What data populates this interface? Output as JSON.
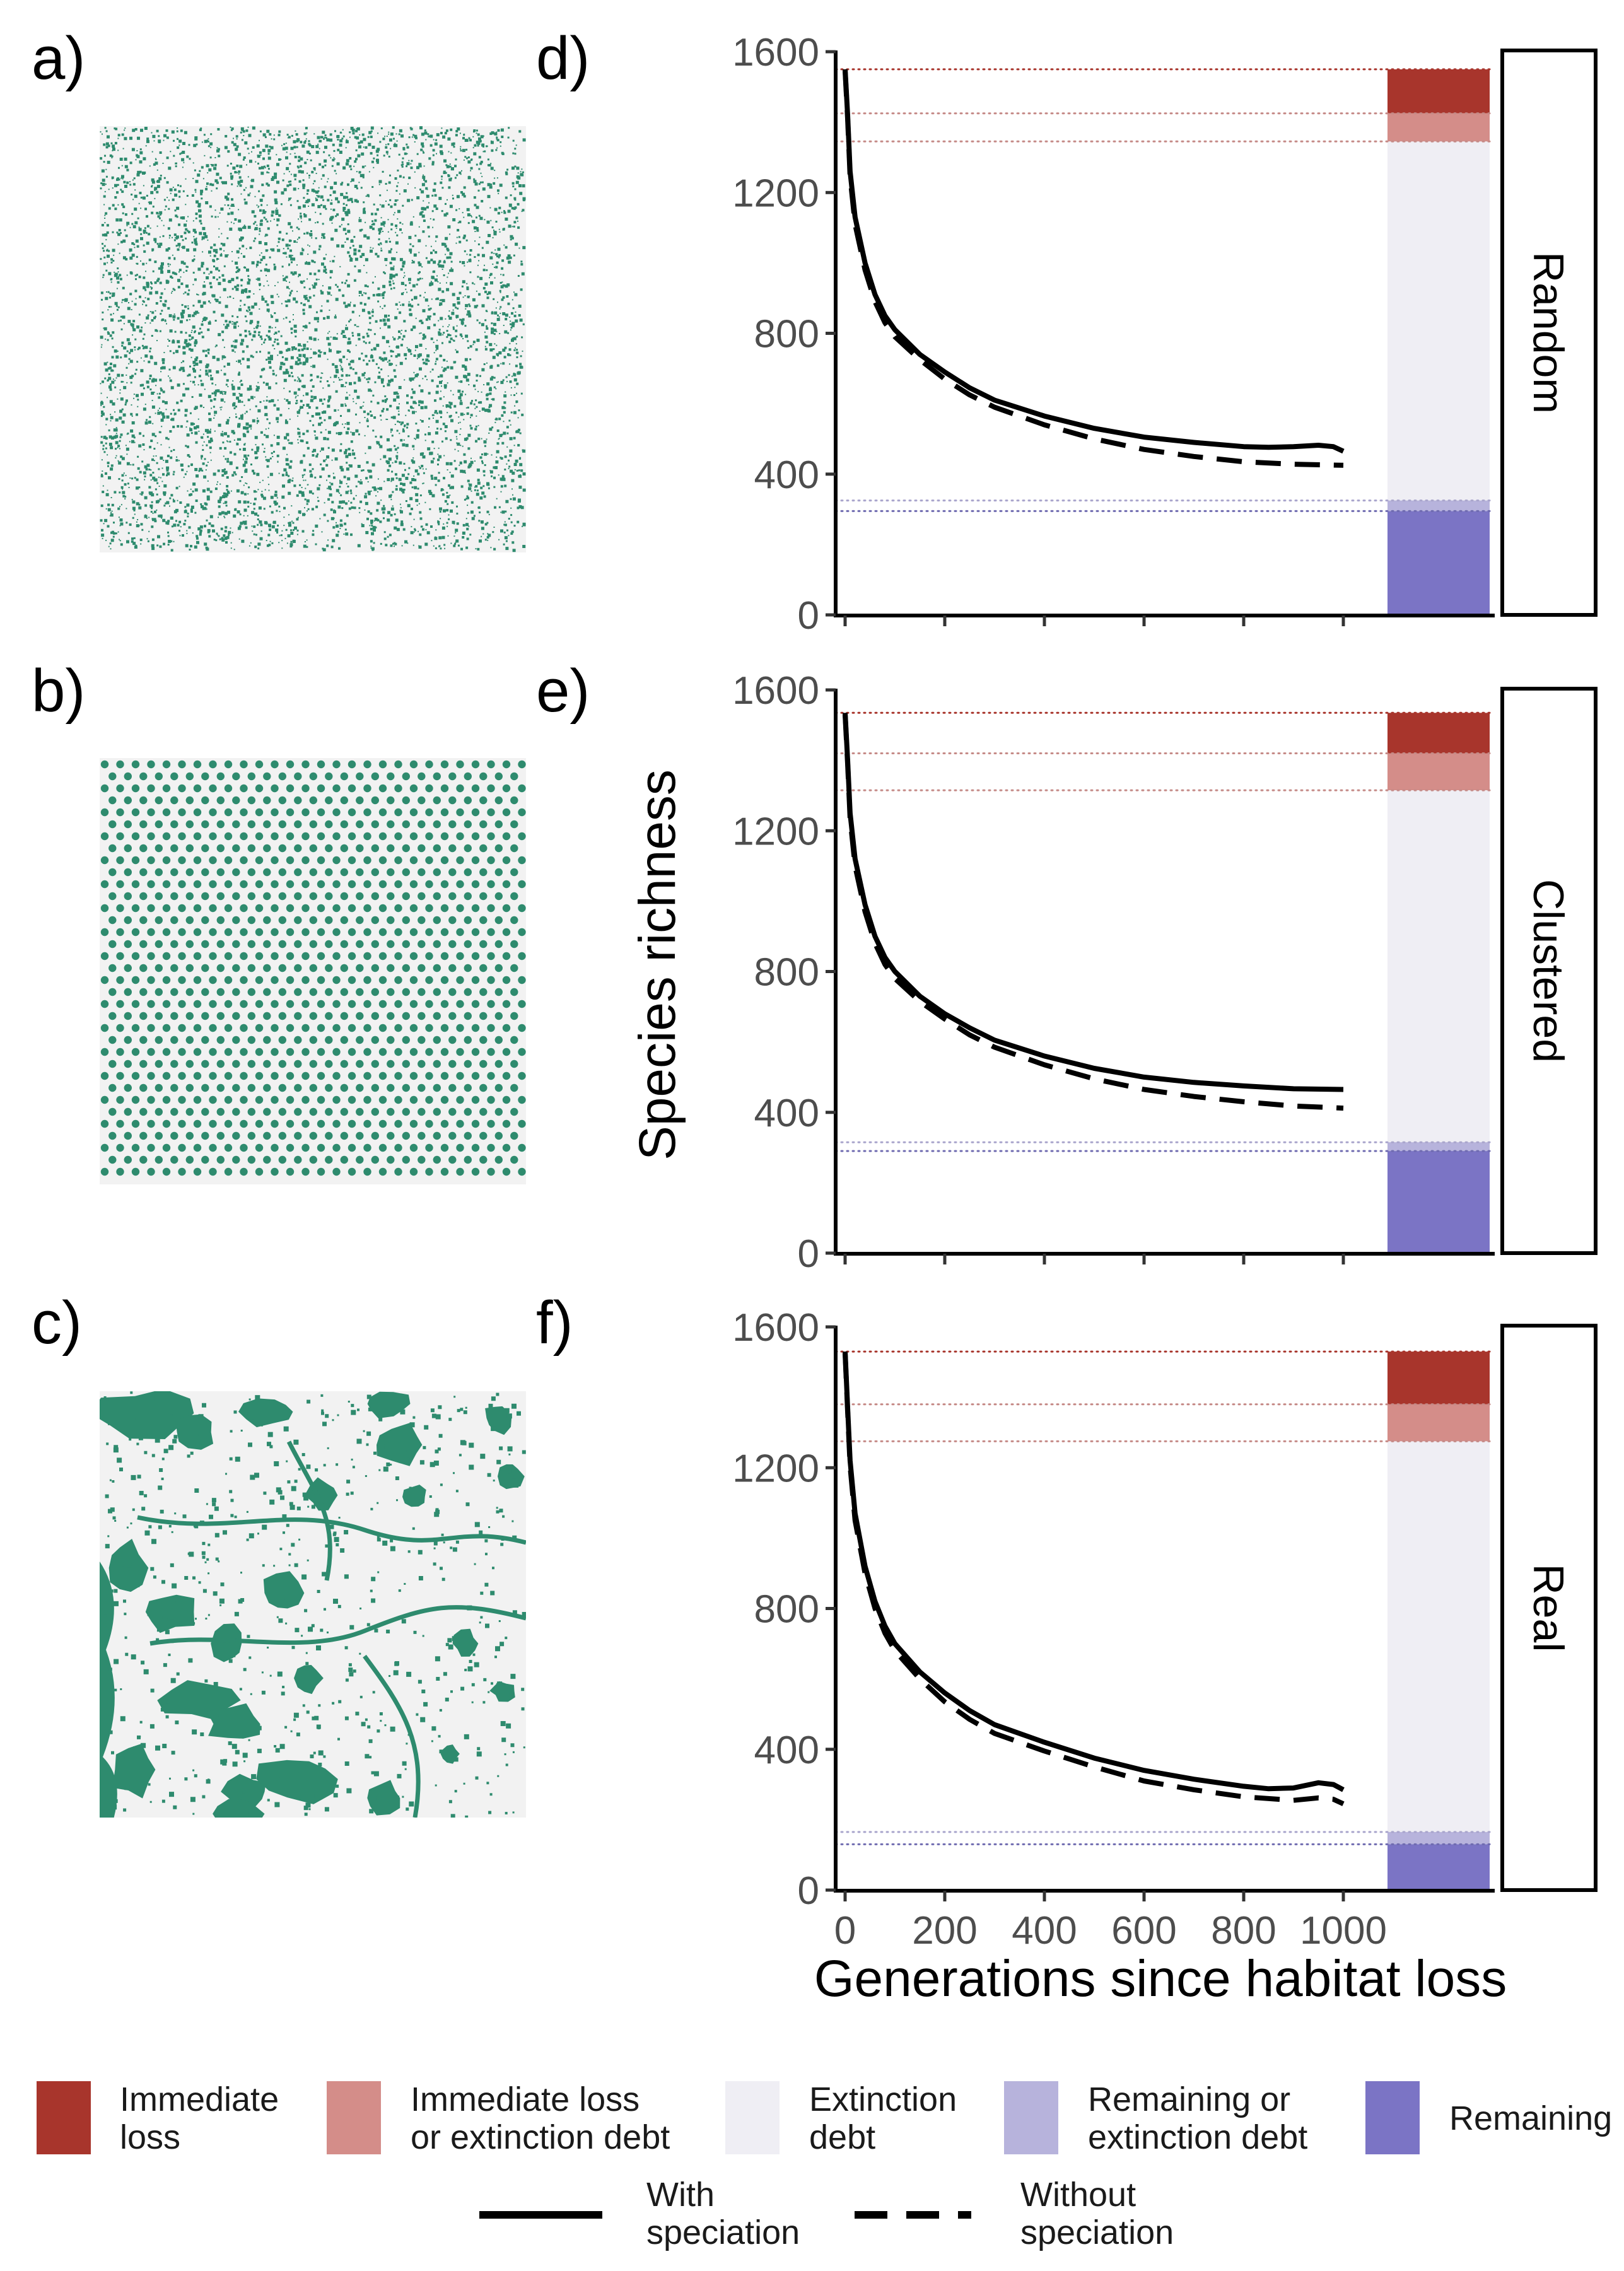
{
  "figure": {
    "panel_labels": [
      "a)",
      "b)",
      "c)",
      "d)",
      "e)",
      "f)"
    ],
    "y_axis_title": "Species richness",
    "x_axis_title": "Generations since habitat loss"
  },
  "maps": [
    {
      "label": "a)",
      "pattern": "random",
      "habitat_color": "#2e8b6e",
      "background_color": "#f2f2f2"
    },
    {
      "label": "b)",
      "pattern": "clustered",
      "habitat_color": "#2e8b6e",
      "background_color": "#f2f2f2"
    },
    {
      "label": "c)",
      "pattern": "real",
      "habitat_color": "#2e8b6e",
      "background_color": "#f2f2f2"
    }
  ],
  "chart_data": [
    {
      "type": "line",
      "panel_label": "d)",
      "facet": "Random",
      "xlim": [
        0,
        1000
      ],
      "ylim": [
        0,
        1600
      ],
      "x_ticks": [
        0,
        200,
        400,
        600,
        800,
        1000
      ],
      "y_ticks": [
        0,
        400,
        800,
        1200,
        1600
      ],
      "series": [
        {
          "name": "With speciation",
          "style": "solid",
          "x": [
            0,
            5,
            10,
            20,
            40,
            60,
            80,
            100,
            150,
            200,
            250,
            300,
            400,
            500,
            600,
            700,
            800,
            850,
            900,
            950,
            980,
            1000
          ],
          "y": [
            1550,
            1420,
            1260,
            1130,
            1000,
            910,
            850,
            810,
            740,
            690,
            645,
            610,
            565,
            530,
            505,
            490,
            478,
            476,
            478,
            482,
            478,
            465
          ]
        },
        {
          "name": "Without speciation",
          "style": "dashed",
          "x": [
            0,
            5,
            10,
            20,
            40,
            60,
            80,
            100,
            150,
            200,
            250,
            300,
            400,
            500,
            600,
            700,
            800,
            900,
            1000
          ],
          "y": [
            1545,
            1410,
            1245,
            1110,
            980,
            890,
            830,
            790,
            725,
            670,
            625,
            590,
            540,
            500,
            470,
            450,
            435,
            428,
            425
          ]
        }
      ],
      "reference_lines": [
        1550,
        1425,
        1345,
        325,
        295
      ],
      "bar": [
        {
          "category": "Immediate loss",
          "from": 1425,
          "to": 1550
        },
        {
          "category": "Immediate loss or extinction debt",
          "from": 1345,
          "to": 1425
        },
        {
          "category": "Extinction debt",
          "from": 325,
          "to": 1345
        },
        {
          "category": "Remaining or extinction debt",
          "from": 295,
          "to": 325
        },
        {
          "category": "Remaining",
          "from": 0,
          "to": 295
        }
      ]
    },
    {
      "type": "line",
      "panel_label": "e)",
      "facet": "Clustered",
      "xlim": [
        0,
        1000
      ],
      "ylim": [
        0,
        1600
      ],
      "x_ticks": [
        0,
        200,
        400,
        600,
        800,
        1000
      ],
      "y_ticks": [
        0,
        400,
        800,
        1200,
        1600
      ],
      "series": [
        {
          "name": "With speciation",
          "style": "solid",
          "x": [
            0,
            5,
            10,
            20,
            40,
            60,
            80,
            100,
            150,
            200,
            250,
            300,
            400,
            500,
            600,
            700,
            800,
            900,
            1000
          ],
          "y": [
            1535,
            1400,
            1250,
            1120,
            990,
            900,
            840,
            800,
            730,
            680,
            640,
            605,
            560,
            525,
            500,
            485,
            475,
            467,
            465
          ]
        },
        {
          "name": "Without speciation",
          "style": "dashed",
          "x": [
            0,
            5,
            10,
            20,
            40,
            60,
            80,
            100,
            150,
            200,
            250,
            300,
            400,
            500,
            600,
            700,
            800,
            900,
            1000
          ],
          "y": [
            1530,
            1390,
            1235,
            1100,
            970,
            880,
            820,
            780,
            715,
            665,
            620,
            585,
            535,
            495,
            465,
            445,
            430,
            418,
            412
          ]
        }
      ],
      "reference_lines": [
        1535,
        1420,
        1315,
        315,
        290
      ],
      "bar": [
        {
          "category": "Immediate loss",
          "from": 1420,
          "to": 1535
        },
        {
          "category": "Immediate loss or extinction debt",
          "from": 1315,
          "to": 1420
        },
        {
          "category": "Extinction debt",
          "from": 315,
          "to": 1315
        },
        {
          "category": "Remaining or extinction debt",
          "from": 290,
          "to": 315
        },
        {
          "category": "Remaining",
          "from": 0,
          "to": 290
        }
      ]
    },
    {
      "type": "line",
      "panel_label": "f)",
      "facet": "Real",
      "xlim": [
        0,
        1000
      ],
      "ylim": [
        0,
        1600
      ],
      "x_ticks": [
        0,
        200,
        400,
        600,
        800,
        1000
      ],
      "y_ticks": [
        0,
        400,
        800,
        1200,
        1600
      ],
      "series": [
        {
          "name": "With speciation",
          "style": "solid",
          "x": [
            0,
            5,
            10,
            20,
            40,
            60,
            80,
            100,
            150,
            200,
            250,
            300,
            400,
            500,
            600,
            700,
            800,
            850,
            900,
            950,
            980,
            1000
          ],
          "y": [
            1530,
            1370,
            1220,
            1070,
            920,
            820,
            750,
            700,
            620,
            560,
            510,
            470,
            420,
            375,
            340,
            315,
            295,
            288,
            290,
            305,
            300,
            285
          ]
        },
        {
          "name": "Without speciation",
          "style": "dashed",
          "x": [
            0,
            5,
            10,
            20,
            40,
            60,
            80,
            100,
            150,
            200,
            250,
            300,
            400,
            500,
            600,
            700,
            800,
            900,
            950,
            980,
            1000
          ],
          "y": [
            1525,
            1360,
            1205,
            1050,
            900,
            800,
            730,
            680,
            600,
            535,
            485,
            445,
            395,
            350,
            310,
            285,
            265,
            255,
            262,
            258,
            245
          ]
        }
      ],
      "reference_lines": [
        1530,
        1380,
        1275,
        165,
        130
      ],
      "bar": [
        {
          "category": "Immediate loss",
          "from": 1380,
          "to": 1530
        },
        {
          "category": "Immediate loss or extinction debt",
          "from": 1275,
          "to": 1380
        },
        {
          "category": "Extinction debt",
          "from": 165,
          "to": 1275
        },
        {
          "category": "Remaining or extinction debt",
          "from": 130,
          "to": 165
        },
        {
          "category": "Remaining",
          "from": 0,
          "to": 130
        }
      ]
    }
  ],
  "legend": {
    "fill_items": [
      {
        "lines": [
          "Immediate",
          "loss"
        ],
        "color": "#a8352c"
      },
      {
        "lines": [
          "Immediate loss",
          "or extinction debt"
        ],
        "color": "#d48d89"
      },
      {
        "lines": [
          "Extinction",
          "debt"
        ],
        "color": "#efeef4"
      },
      {
        "lines": [
          "Remaining or",
          "extinction debt"
        ],
        "color": "#b7b3dc"
      },
      {
        "lines": [
          "Remaining"
        ],
        "color": "#7b74c5"
      }
    ],
    "line_items": [
      {
        "lines": [
          "With",
          "speciation"
        ],
        "style": "solid"
      },
      {
        "lines": [
          "Without",
          "speciation"
        ],
        "style": "dashed"
      }
    ]
  },
  "colors": {
    "immediate_loss": "#a8352c",
    "immediate_loss_or_debt": "#d48d89",
    "extinction_debt": "#efeef4",
    "remaining_or_debt": "#b7b3dc",
    "remaining": "#7b74c5",
    "reference_line_colors": [
      "#a8352c",
      "#c58a87",
      "#c58a87",
      "#a9a5cc",
      "#6f6bb0"
    ]
  }
}
